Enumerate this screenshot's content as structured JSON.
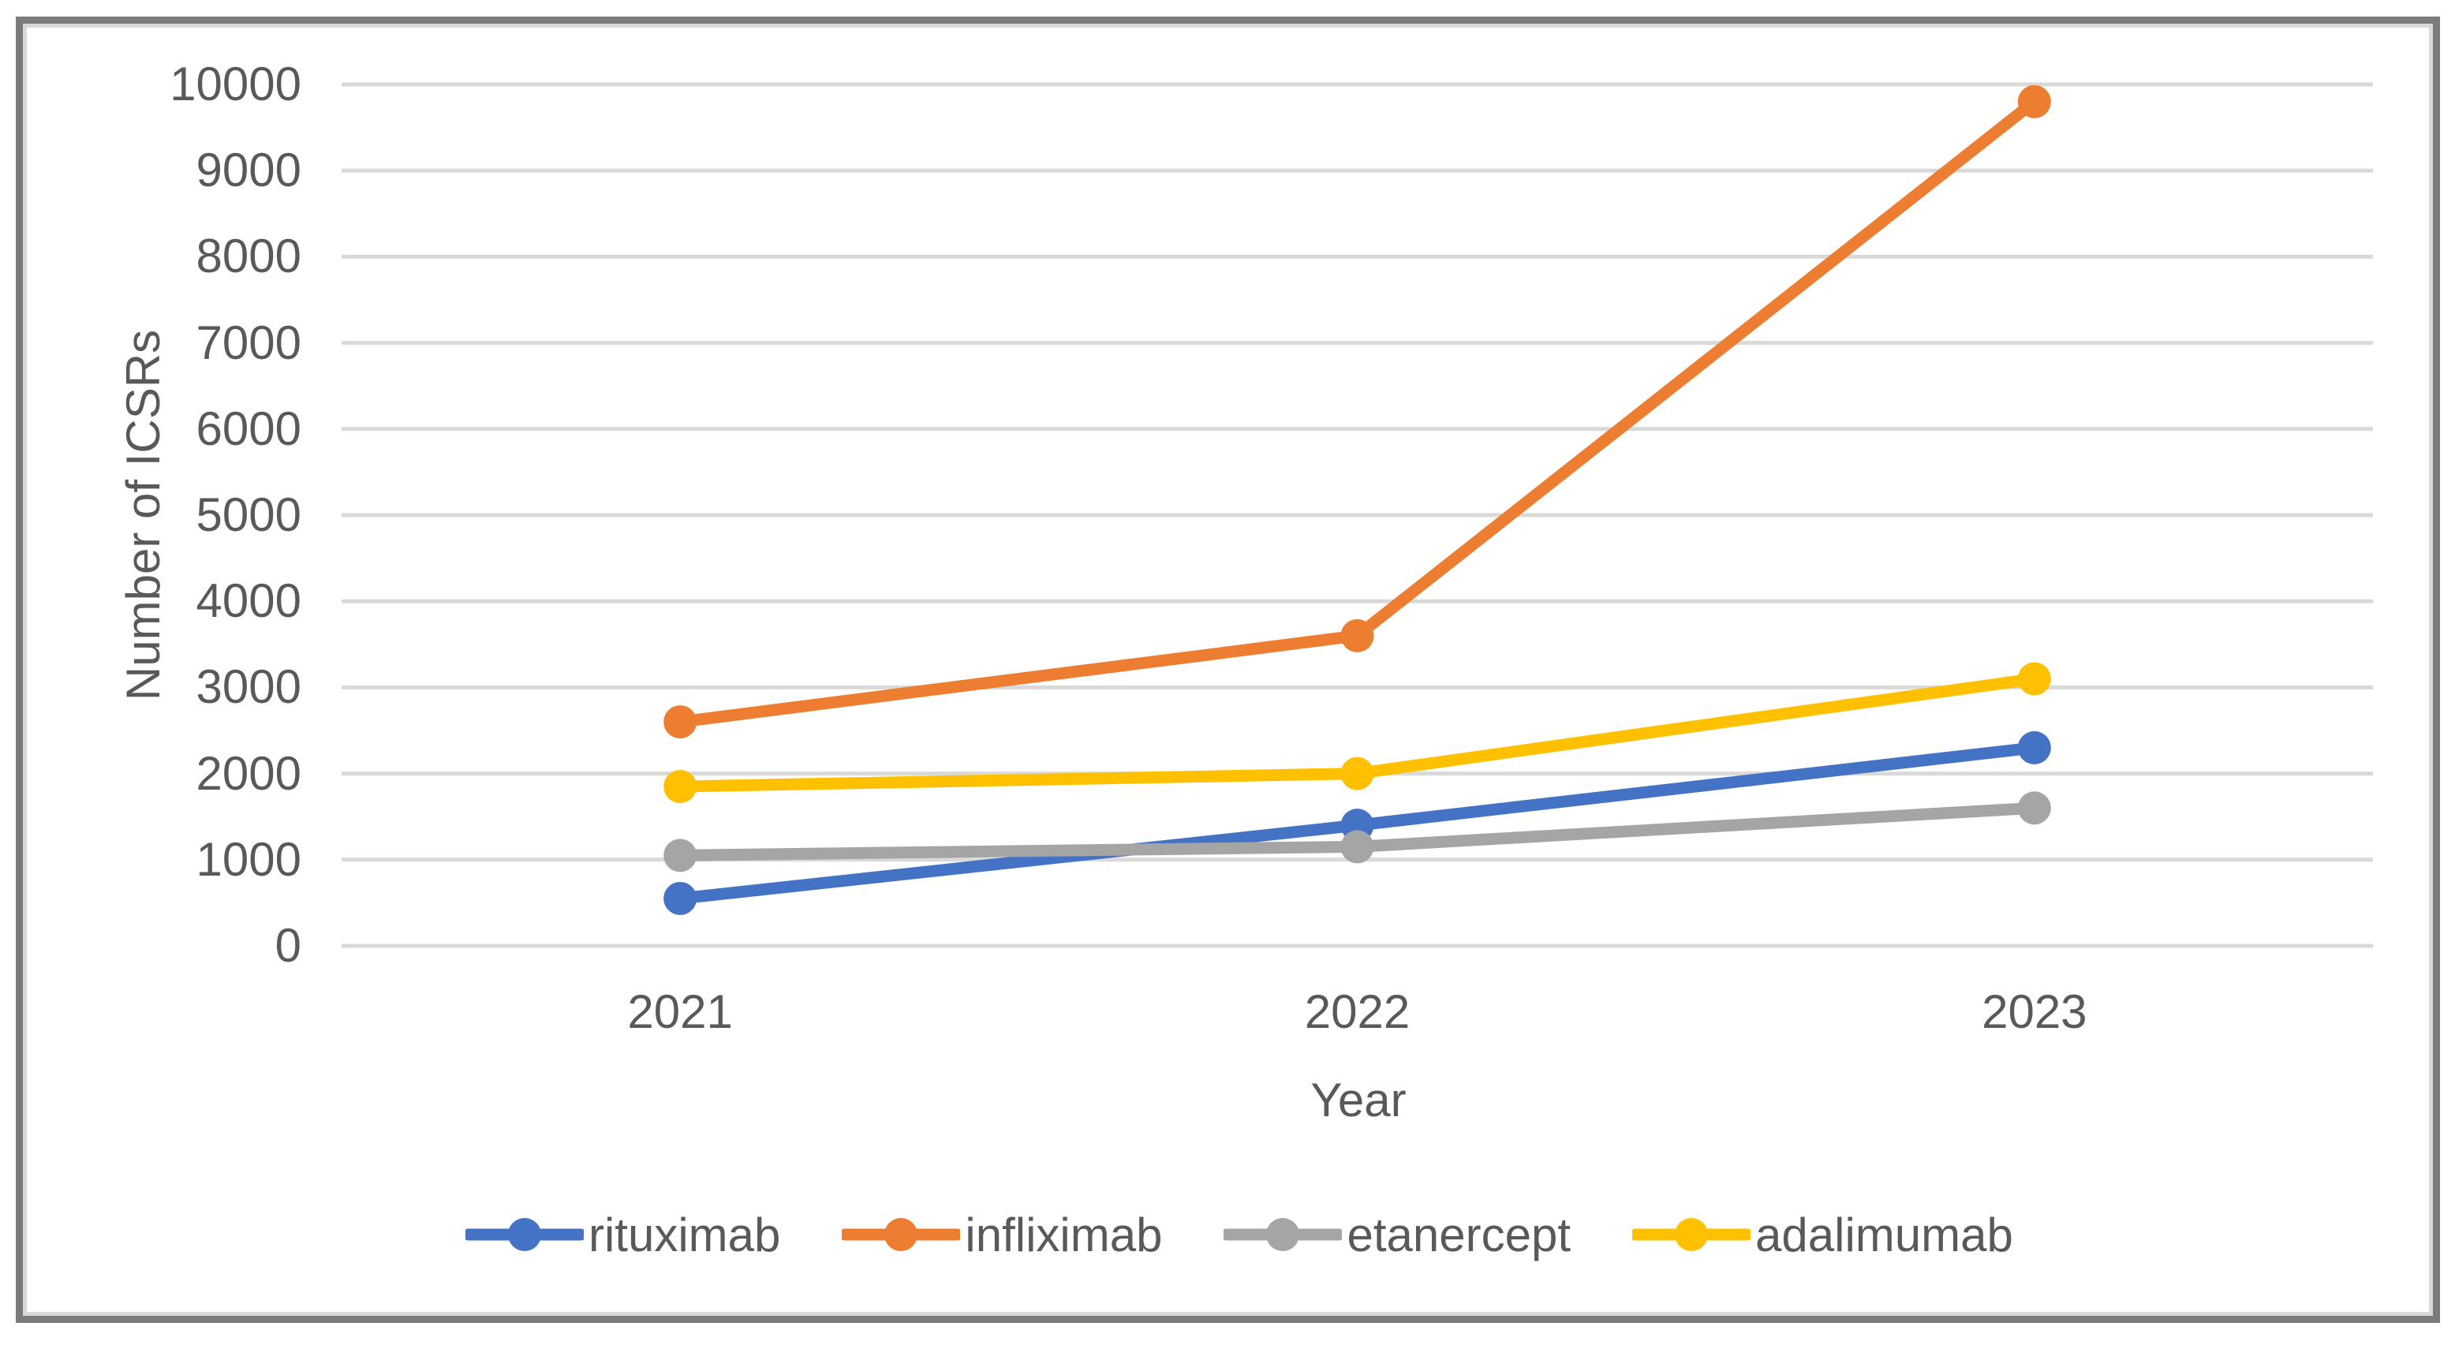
{
  "chart_data": {
    "type": "line",
    "title": "",
    "xlabel": "Year",
    "ylabel": "Number of ICSRs",
    "categories": [
      "2021",
      "2022",
      "2023"
    ],
    "series": [
      {
        "name": "rituximab",
        "color": "#4472C4",
        "values": [
          550,
          1400,
          2300
        ]
      },
      {
        "name": "infliximab",
        "color": "#ED7D31",
        "values": [
          2600,
          3600,
          9800
        ]
      },
      {
        "name": "etanercept",
        "color": "#A5A5A5",
        "values": [
          1050,
          1150,
          1600
        ]
      },
      {
        "name": "adalimumab",
        "color": "#FFC000",
        "values": [
          1850,
          2000,
          3100
        ]
      }
    ],
    "ylim": [
      0,
      10000
    ],
    "ytick_step": 1000,
    "yticks": [
      0,
      1000,
      2000,
      3000,
      4000,
      5000,
      6000,
      7000,
      8000,
      9000,
      10000
    ],
    "grid": "horizontal",
    "gridline_color": "#D9D9D9",
    "axis_text_color": "#595959",
    "legend_position": "bottom",
    "frame_border_color": "#7B7B7B"
  }
}
